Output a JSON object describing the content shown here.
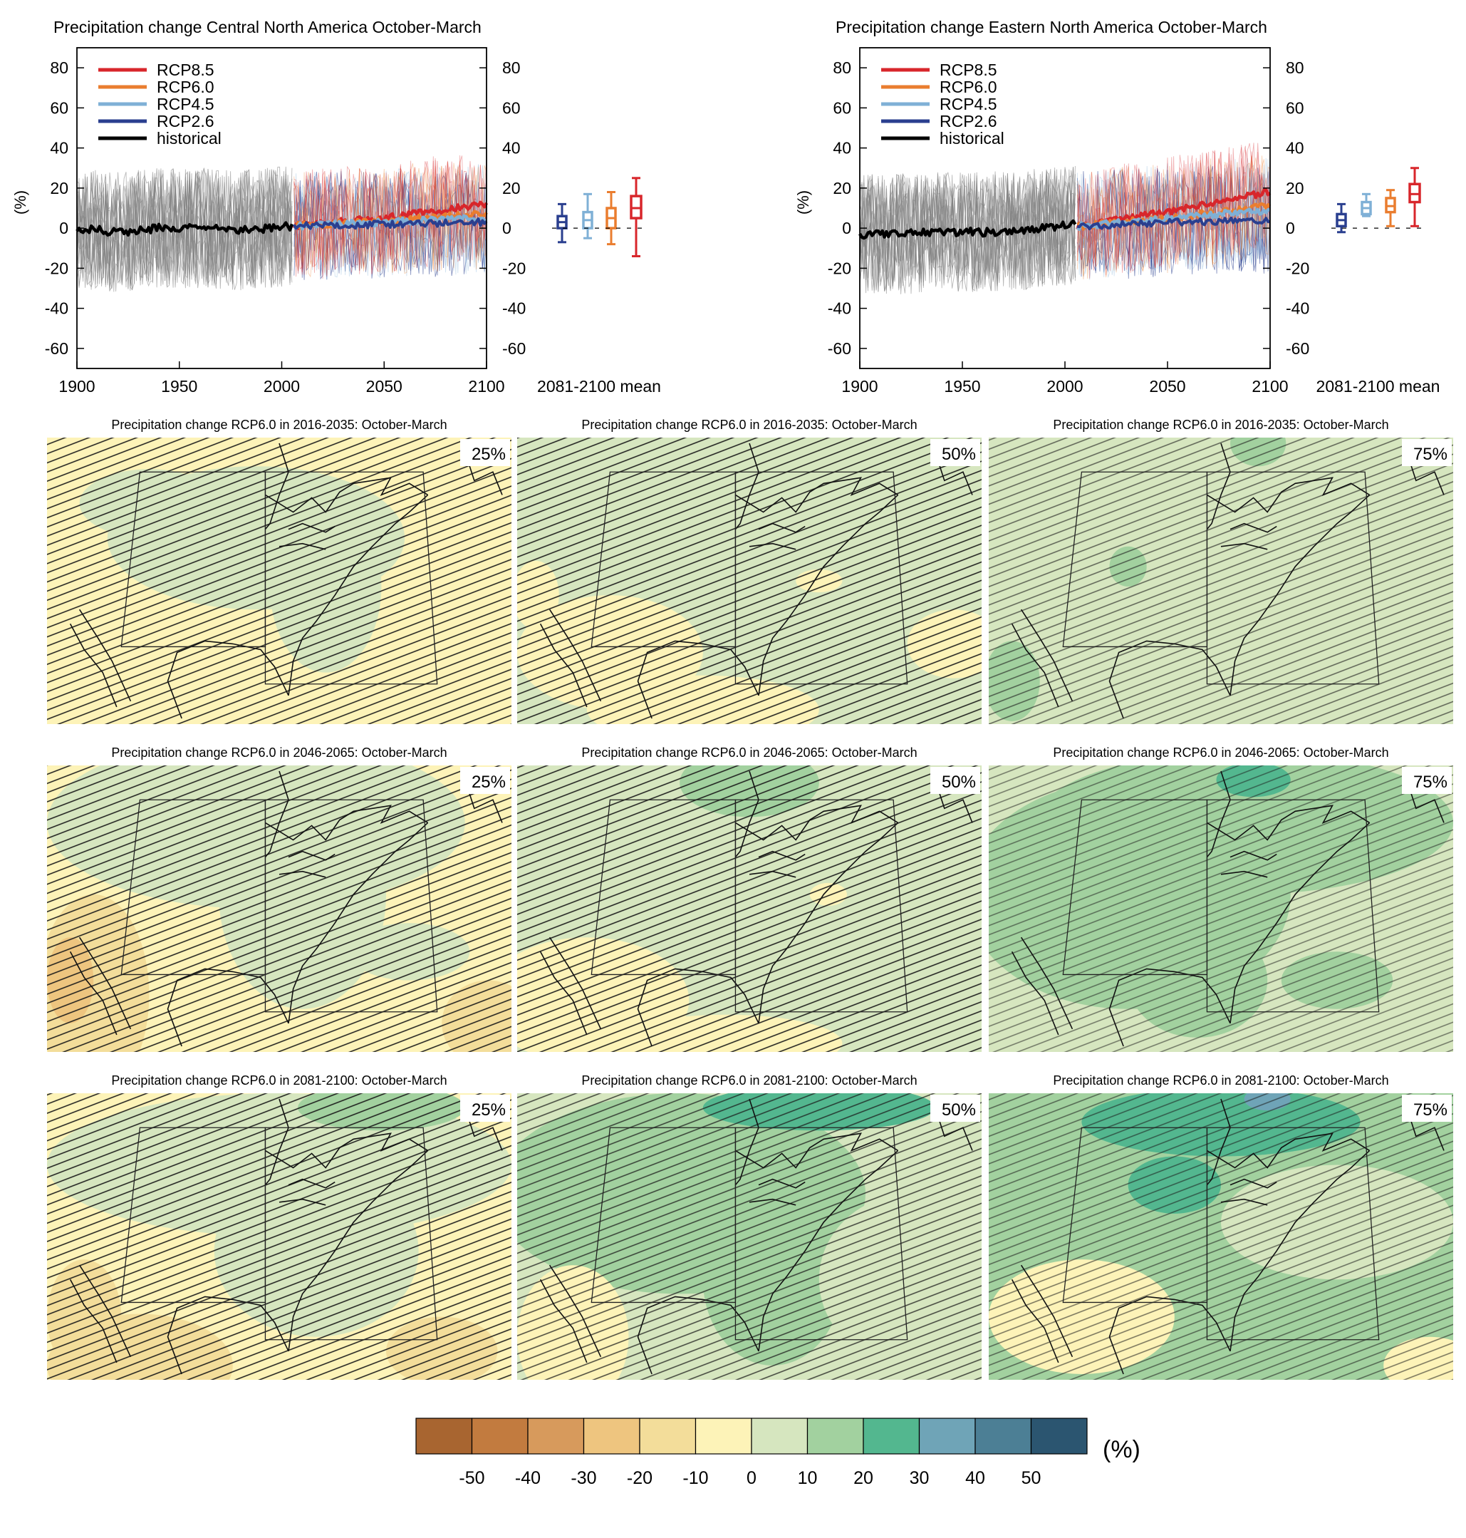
{
  "chart_data": [
    {
      "type": "line",
      "title": "Precipitation change Central North America October-March",
      "ylabel": "(%)",
      "xlim": [
        1900,
        2100
      ],
      "ylim": [
        -70,
        90
      ],
      "yticks": [
        "80",
        "60",
        "40",
        "20",
        "0",
        "-20",
        "-40",
        "-60"
      ],
      "xticks": [
        "1900",
        "1950",
        "2000",
        "2050",
        "2100"
      ],
      "legend": [
        "RCP8.5",
        "RCP6.0",
        "RCP4.5",
        "RCP2.6",
        "historical"
      ],
      "legend_position": "top-left",
      "series": [
        {
          "name": "historical",
          "x": [
            1900,
            1920,
            1940,
            1960,
            1980,
            2005
          ],
          "y": [
            0,
            -2,
            0,
            0,
            -1,
            1
          ]
        },
        {
          "name": "RCP2.6",
          "x": [
            2006,
            2050,
            2100
          ],
          "y": [
            1,
            2,
            3
          ]
        },
        {
          "name": "RCP4.5",
          "x": [
            2006,
            2050,
            2100
          ],
          "y": [
            1,
            3,
            5
          ]
        },
        {
          "name": "RCP6.0",
          "x": [
            2006,
            2050,
            2100
          ],
          "y": [
            1,
            4,
            7
          ]
        },
        {
          "name": "RCP8.5",
          "x": [
            2006,
            2050,
            2100
          ],
          "y": [
            1,
            5,
            12
          ]
        }
      ],
      "box_label": "2081-2100 mean",
      "boxes": [
        {
          "name": "RCP2.6",
          "min": -7,
          "q1": 0,
          "median": 3,
          "q3": 6,
          "max": 12
        },
        {
          "name": "RCP4.5",
          "min": -5,
          "q1": 0,
          "median": 4,
          "q3": 8,
          "max": 17
        },
        {
          "name": "RCP6.0",
          "min": -8,
          "q1": 0,
          "median": 5,
          "q3": 10,
          "max": 18
        },
        {
          "name": "RCP8.5",
          "min": -14,
          "q1": 5,
          "median": 10,
          "q3": 16,
          "max": 25
        }
      ]
    },
    {
      "type": "line",
      "title": "Precipitation change Eastern North America October-March",
      "ylabel": "(%)",
      "xlim": [
        1900,
        2100
      ],
      "ylim": [
        -70,
        90
      ],
      "yticks": [
        "80",
        "60",
        "40",
        "20",
        "0",
        "-20",
        "-40",
        "-60"
      ],
      "xticks": [
        "1900",
        "1950",
        "2000",
        "2050",
        "2100"
      ],
      "legend": [
        "RCP8.5",
        "RCP6.0",
        "RCP4.5",
        "RCP2.6",
        "historical"
      ],
      "legend_position": "top-left",
      "series": [
        {
          "name": "historical",
          "x": [
            1900,
            1920,
            1940,
            1960,
            1980,
            2005
          ],
          "y": [
            -3,
            -3,
            -2,
            -2,
            -1,
            2
          ]
        },
        {
          "name": "RCP2.6",
          "x": [
            2006,
            2050,
            2100
          ],
          "y": [
            1,
            3,
            4
          ]
        },
        {
          "name": "RCP4.5",
          "x": [
            2006,
            2050,
            2100
          ],
          "y": [
            1,
            5,
            9
          ]
        },
        {
          "name": "RCP6.0",
          "x": [
            2006,
            2050,
            2100
          ],
          "y": [
            1,
            5,
            11
          ]
        },
        {
          "name": "RCP8.5",
          "x": [
            2006,
            2050,
            2100
          ],
          "y": [
            1,
            8,
            18
          ]
        }
      ],
      "box_label": "2081-2100 mean",
      "boxes": [
        {
          "name": "RCP2.6",
          "min": -2,
          "q1": 1,
          "median": 4,
          "q3": 7,
          "max": 12
        },
        {
          "name": "RCP4.5",
          "min": 6,
          "q1": 7,
          "median": 10,
          "q3": 13,
          "max": 17
        },
        {
          "name": "RCP6.0",
          "min": 1,
          "q1": 8,
          "median": 11,
          "q3": 15,
          "max": 19
        },
        {
          "name": "RCP8.5",
          "min": 1,
          "q1": 13,
          "median": 17,
          "q3": 22,
          "max": 30
        }
      ]
    },
    {
      "type": "heatmap",
      "maps": [
        {
          "title": "Precipitation change RCP6.0 in 2016-2035: October-March",
          "percentile": "25%"
        },
        {
          "title": "Precipitation change RCP6.0 in 2016-2035: October-March",
          "percentile": "50%"
        },
        {
          "title": "Precipitation change RCP6.0 in 2016-2035: October-March",
          "percentile": "75%"
        },
        {
          "title": "Precipitation change RCP6.0 in 2046-2065: October-March",
          "percentile": "25%"
        },
        {
          "title": "Precipitation change RCP6.0 in 2046-2065: October-March",
          "percentile": "50%"
        },
        {
          "title": "Precipitation change RCP6.0 in 2046-2065: October-March",
          "percentile": "75%"
        },
        {
          "title": "Precipitation change RCP6.0 in 2081-2100: October-March",
          "percentile": "25%"
        },
        {
          "title": "Precipitation change RCP6.0 in 2081-2100: October-March",
          "percentile": "50%"
        },
        {
          "title": "Precipitation change RCP6.0 in 2081-2100: October-March",
          "percentile": "75%"
        }
      ],
      "colorbar": {
        "ticks": [
          "-50",
          "-40",
          "-30",
          "-20",
          "-10",
          "0",
          "10",
          "20",
          "30",
          "40",
          "50"
        ],
        "unit": "(%)",
        "colors": [
          "#a86530",
          "#c27b3f",
          "#d79a5c",
          "#eec57f",
          "#f3dd9a",
          "#fdf3b8",
          "#d6e6bf",
          "#a2d19f",
          "#53b78f",
          "#6fa4b7",
          "#4c7f95",
          "#2b5570"
        ]
      }
    }
  ],
  "colors": {
    "historical": "#000000",
    "RCP2.6": "#2a3f8f",
    "RCP4.5": "#7fb0d6",
    "RCP6.0": "#ea7d2f",
    "RCP8.5": "#d8262b",
    "model_spread": "#808080"
  }
}
